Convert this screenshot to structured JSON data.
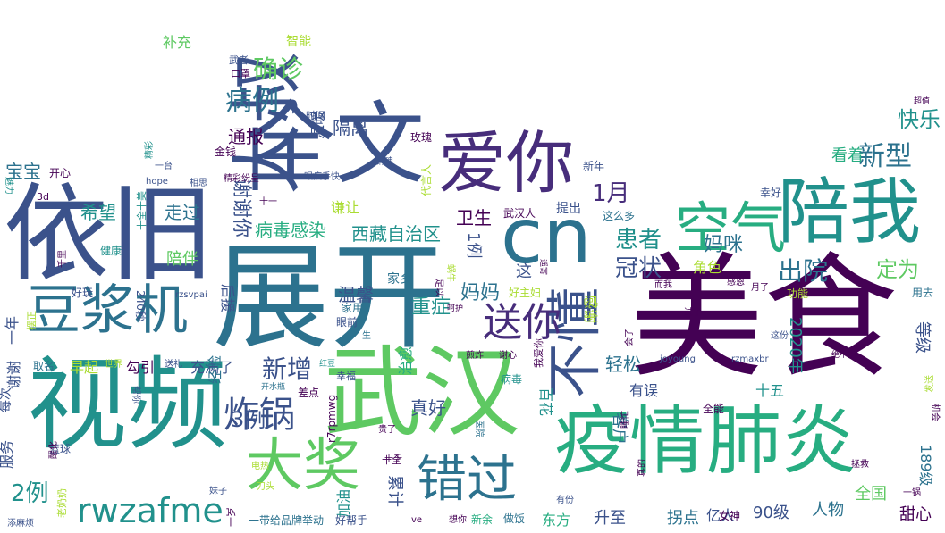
{
  "palette": {
    "dark_purple": "#440154",
    "indigo": "#3b528b",
    "steel_blue": "#2c728e",
    "teal": "#21918c",
    "green": "#27ad81",
    "light_green": "#5ec962",
    "lime": "#aadc32",
    "yellow": "#fde725"
  },
  "words": [
    {
      "text": "美食",
      "color": "#440154"
    },
    {
      "text": "展开",
      "color": "#2c728e"
    },
    {
      "text": "视频",
      "color": "#21918c"
    },
    {
      "text": "依旧",
      "color": "#3b528b"
    },
    {
      "text": "武汉",
      "color": "#5ec962"
    },
    {
      "text": "全文",
      "color": "#3b528b"
    },
    {
      "text": "cn",
      "color": "#2c728e"
    },
    {
      "text": "疫情",
      "color": "#27ad81"
    },
    {
      "text": "肺炎",
      "color": "#27ad81"
    },
    {
      "text": "大叔",
      "color": "#3b528b"
    },
    {
      "text": "爱你",
      "color": "#472d7b"
    },
    {
      "text": "豆浆机",
      "color": "#2c728e"
    },
    {
      "text": "陪我",
      "color": "#21918c"
    },
    {
      "text": "空气",
      "color": "#27ad81"
    },
    {
      "text": "不懂",
      "color": "#3b528b"
    },
    {
      "text": "大奖",
      "color": "#5ec962"
    },
    {
      "text": "错过",
      "color": "#2c728e"
    },
    {
      "text": "rwzafme",
      "color": "#21918c"
    },
    {
      "text": "送你",
      "color": "#472d7b"
    },
    {
      "text": "炸锅",
      "color": "#3b528b"
    },
    {
      "text": "确诊",
      "color": "#5ec962"
    },
    {
      "text": "病例",
      "color": "#2c728e"
    },
    {
      "text": "新型",
      "color": "#2c728e"
    },
    {
      "text": "新增",
      "color": "#3b528b"
    },
    {
      "text": "1月",
      "color": "#472d7b"
    },
    {
      "text": "患者",
      "color": "#21918c"
    },
    {
      "text": "出院",
      "color": "#2c728e"
    },
    {
      "text": "冠状",
      "color": "#3b528b"
    },
    {
      "text": "2例",
      "color": "#21918c"
    },
    {
      "text": "3例",
      "color": "#3b528b"
    },
    {
      "text": "通报",
      "color": "#440154"
    },
    {
      "text": "隔离",
      "color": "#3b528b"
    },
    {
      "text": "快乐",
      "color": "#21918c"
    },
    {
      "text": "看着",
      "color": "#27ad81"
    },
    {
      "text": "定为",
      "color": "#5ec962"
    },
    {
      "text": "妈咪",
      "color": "#2c728e"
    },
    {
      "text": "谢谢你",
      "color": "#3b528b"
    },
    {
      "text": "病毒感染",
      "color": "#27ad81"
    },
    {
      "text": "西藏自治区",
      "color": "#21918c"
    },
    {
      "text": "走过",
      "color": "#2c728e"
    },
    {
      "text": "希望",
      "color": "#21918c"
    },
    {
      "text": "宝宝",
      "color": "#2c728e"
    },
    {
      "text": "温馨",
      "color": "#3b528b"
    },
    {
      "text": "重症",
      "color": "#21918c"
    },
    {
      "text": "妈妈",
      "color": "#2c728e"
    },
    {
      "text": "卫生",
      "color": "#440154"
    },
    {
      "text": "真好",
      "color": "#3b528b"
    },
    {
      "text": "有误",
      "color": "#3b528b"
    },
    {
      "text": "轻松",
      "color": "#2c728e"
    },
    {
      "text": "充满了",
      "color": "#3b528b"
    },
    {
      "text": "累计",
      "color": "#3b528b"
    },
    {
      "text": "百花",
      "color": "#21918c"
    },
    {
      "text": "客户",
      "color": "#2c728e"
    },
    {
      "text": "人物",
      "color": "#2c728e"
    },
    {
      "text": "全国",
      "color": "#5ec962"
    },
    {
      "text": "甜心",
      "color": "#440154"
    },
    {
      "text": "90级",
      "color": "#3b528b"
    },
    {
      "text": "升至",
      "color": "#3b528b"
    },
    {
      "text": "拐点",
      "color": "#2c728e"
    },
    {
      "text": "亿人",
      "color": "#3b528b"
    },
    {
      "text": "东方",
      "color": "#27ad81"
    },
    {
      "text": "2020年",
      "color": "#21918c"
    },
    {
      "text": "十五",
      "color": "#21918c"
    },
    {
      "text": "等级",
      "color": "#3b528b"
    },
    {
      "text": "189级",
      "color": "#2c728e"
    },
    {
      "text": "加油",
      "color": "#21918c"
    },
    {
      "text": "治愈",
      "color": "#27ad81"
    },
    {
      "text": "1例",
      "color": "#3b528b"
    },
    {
      "text": "这",
      "color": "#3b528b"
    },
    {
      "text": "感谢",
      "color": "#aadc32"
    },
    {
      "text": "角色",
      "color": "#aadc32"
    },
    {
      "text": "陪伴",
      "color": "#5ec962"
    },
    {
      "text": "经验",
      "color": "#2c728e"
    },
    {
      "text": "后援",
      "color": "#3b528b"
    },
    {
      "text": "勾引",
      "color": "#440154"
    },
    {
      "text": "早起",
      "color": "#aadc32"
    },
    {
      "text": "谦让",
      "color": "#aadc32"
    },
    {
      "text": "温暖",
      "color": "#3b528b"
    },
    {
      "text": "服务",
      "color": "#3b528b"
    },
    {
      "text": "每次",
      "color": "#3b528b"
    },
    {
      "text": "谢谢",
      "color": "#3b528b"
    },
    {
      "text": "一年",
      "color": "#3b528b"
    },
    {
      "text": "补充",
      "color": "#5ec962"
    },
    {
      "text": "智能",
      "color": "#aadc32"
    },
    {
      "text": "武汉人",
      "color": "#440154"
    },
    {
      "text": "提出",
      "color": "#3b528b"
    },
    {
      "text": "这么多",
      "color": "#2c728e"
    },
    {
      "text": "幸好",
      "color": "#3b528b"
    },
    {
      "text": "新年",
      "color": "#3b528b"
    },
    {
      "text": "玫瑰",
      "color": "#440154"
    },
    {
      "text": "一带给品牌举动",
      "color": "#2c728e"
    },
    {
      "text": "好帮手",
      "color": "#3b528b"
    },
    {
      "text": "新余",
      "color": "#27ad81"
    },
    {
      "text": "做饭",
      "color": "#2c728e"
    },
    {
      "text": "女神",
      "color": "#440154"
    },
    {
      "text": "240秒",
      "color": "#3b528b"
    },
    {
      "text": "健康",
      "color": "#21918c"
    },
    {
      "text": "好玩",
      "color": "#3b528b"
    },
    {
      "text": "开心",
      "color": "#440154"
    },
    {
      "text": "取名",
      "color": "#2c728e"
    },
    {
      "text": "篮球",
      "color": "#3b528b"
    },
    {
      "text": "家乡",
      "color": "#2c728e"
    },
    {
      "text": "家用",
      "color": "#2c728e"
    },
    {
      "text": "眼前",
      "color": "#3b528b"
    },
    {
      "text": "病毒",
      "color": "#21918c"
    },
    {
      "text": "贵了",
      "color": "#440154"
    },
    {
      "text": "有份",
      "color": "#3b528b"
    },
    {
      "text": "月了",
      "color": "#440154"
    },
    {
      "text": "感恩",
      "color": "#440154"
    },
    {
      "text": "功能",
      "color": "#aadc32"
    },
    {
      "text": "用去",
      "color": "#2c728e"
    },
    {
      "text": "全能",
      "color": "#440154"
    },
    {
      "text": "这份",
      "color": "#3b528b"
    },
    {
      "text": "过了",
      "color": "#440154"
    },
    {
      "text": "而我",
      "color": "#440154"
    },
    {
      "text": "十千",
      "color": "#440154"
    },
    {
      "text": "生",
      "color": "#2c728e"
    },
    {
      "text": "金钱",
      "color": "#440154"
    },
    {
      "text": "一台",
      "color": "#3b528b"
    },
    {
      "text": "相思",
      "color": "#3b528b"
    },
    {
      "text": "hope",
      "color": "#3b528b"
    },
    {
      "text": "3d",
      "color": "#440154"
    },
    {
      "text": "精彩纷呈",
      "color": "#440154"
    },
    {
      "text": "眼疾手快",
      "color": "#3b528b"
    },
    {
      "text": "十一",
      "color": "#440154"
    },
    {
      "text": "口罩",
      "color": "#440154"
    },
    {
      "text": "武者",
      "color": "#3b528b"
    },
    {
      "text": "时间",
      "color": "#3b528b"
    },
    {
      "text": "销魂",
      "color": "#3b528b"
    },
    {
      "text": "代言人",
      "color": "#aadc32"
    },
    {
      "text": "精彩",
      "color": "#21918c"
    },
    {
      "text": "十全十美",
      "color": "#21918c"
    },
    {
      "text": "幸福",
      "color": "#3b528b"
    },
    {
      "text": "差点",
      "color": "#440154"
    },
    {
      "text": "开水瓶",
      "color": "#2c728e"
    },
    {
      "text": "r7rpmwg",
      "color": "#440154"
    },
    {
      "text": "joyoung",
      "color": "#3b528b"
    },
    {
      "text": "rzmaxbr",
      "color": "#3b528b"
    },
    {
      "text": "rzsvpai",
      "color": "#3b528b"
    },
    {
      "text": "ve",
      "color": "#440154"
    },
    {
      "text": "想你",
      "color": "#440154"
    },
    {
      "text": "十全",
      "color": "#440154"
    },
    {
      "text": "刀头",
      "color": "#aadc32"
    },
    {
      "text": "电热",
      "color": "#aadc32"
    },
    {
      "text": "妹子",
      "color": "#3b528b"
    },
    {
      "text": "添麻烦",
      "color": "#3b528b"
    },
    {
      "text": "真的",
      "color": "#440154"
    },
    {
      "text": "拯救",
      "color": "#440154"
    },
    {
      "text": "一锅",
      "color": "#440154"
    },
    {
      "text": "机会",
      "color": "#440154"
    },
    {
      "text": "发送",
      "color": "#aadc32"
    },
    {
      "text": "绝不能",
      "color": "#440154"
    },
    {
      "text": "超值",
      "color": "#440154"
    },
    {
      "text": "会了",
      "color": "#440154"
    },
    {
      "text": "睡忙",
      "color": "#440154"
    },
    {
      "text": "医院",
      "color": "#2c728e"
    },
    {
      "text": "我爱你",
      "color": "#440154"
    },
    {
      "text": "谢心",
      "color": "#440154"
    },
    {
      "text": "煎炸",
      "color": "#440154"
    },
    {
      "text": "红豆",
      "color": "#21918c"
    },
    {
      "text": "世界",
      "color": "#aadc32"
    },
    {
      "text": "好主妇",
      "color": "#aadc32"
    },
    {
      "text": "送礼",
      "color": "#3b528b"
    },
    {
      "text": "帮你",
      "color": "#3b528b"
    },
    {
      "text": "醒化",
      "color": "#440154"
    },
    {
      "text": "老奶奶",
      "color": "#aadc32"
    },
    {
      "text": "摆正",
      "color": "#aadc32"
    },
    {
      "text": "一岁",
      "color": "#440154"
    },
    {
      "text": "千里",
      "color": "#440154"
    },
    {
      "text": "魅力",
      "color": "#21918c"
    },
    {
      "text": "蜗牛",
      "color": "#aadc32"
    },
    {
      "text": "呵护",
      "color": "#440154"
    },
    {
      "text": "足以",
      "color": "#440154"
    },
    {
      "text": "遥寄",
      "color": "#440154"
    }
  ]
}
